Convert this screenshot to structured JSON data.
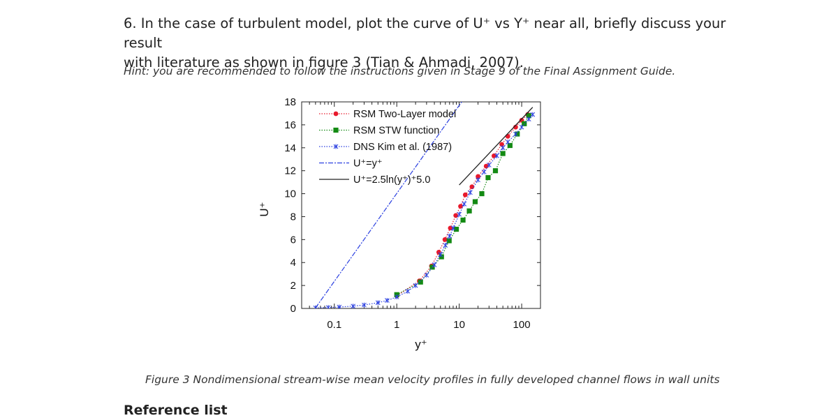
{
  "question": {
    "line1": "6. In the case of turbulent model, plot the curve of U⁺ vs Y⁺ near all, briefly discuss your result",
    "line2": "with literature as shown in figure 3 (Tian & Ahmadi, 2007)."
  },
  "hint": "Hint: you are recommended to follow the instructions given in Stage 9 of the Final Assignment Guide.",
  "caption": "Figure 3 Nondimensional stream-wise mean velocity profiles in fully developed channel flows in wall units",
  "reference_heading": "Reference list",
  "chart_data": {
    "type": "line",
    "title": "",
    "xlabel": "y⁺",
    "ylabel": "U⁺",
    "xscale": "log",
    "xlim": [
      0.03,
      200
    ],
    "ylim": [
      0,
      18
    ],
    "xticks": [
      0.1,
      1,
      10,
      100
    ],
    "xtick_labels": [
      "0.1",
      "1",
      "10",
      "100"
    ],
    "yticks": [
      0,
      2,
      4,
      6,
      8,
      10,
      12,
      14,
      16,
      18
    ],
    "ytick_labels": [
      "0",
      "2",
      "4",
      "6",
      "8",
      "10",
      "12",
      "14",
      "16",
      "18"
    ],
    "legend_position": "top-left",
    "series": [
      {
        "name": "RSM Two-Layer model",
        "color": "#e8192c",
        "marker": "circle",
        "x": [
          1.0,
          2.3,
          3.6,
          4.7,
          5.9,
          7.2,
          8.8,
          10.5,
          12.5,
          16,
          20,
          27,
          36,
          48,
          60,
          80,
          100,
          125
        ],
        "y": [
          1.1,
          2.4,
          3.7,
          4.9,
          6.0,
          7.0,
          8.1,
          8.9,
          9.9,
          10.6,
          11.5,
          12.4,
          13.3,
          14.3,
          15.0,
          15.8,
          16.4,
          16.9
        ]
      },
      {
        "name": "RSM STW function",
        "color": "#138a13",
        "marker": "square",
        "x": [
          1.0,
          2.4,
          3.7,
          5.2,
          6.9,
          9.0,
          11.5,
          14.5,
          18,
          23,
          29,
          38,
          50,
          65,
          85,
          110,
          130
        ],
        "y": [
          1.2,
          2.3,
          3.6,
          4.5,
          5.9,
          6.9,
          7.7,
          8.5,
          9.3,
          10.0,
          11.4,
          12.0,
          13.5,
          14.2,
          15.2,
          16.1,
          16.8
        ]
      },
      {
        "name": "DNS Kim et al. (1987)",
        "color": "#2a3fe0",
        "marker": "asterisk",
        "x": [
          0.05,
          0.08,
          0.12,
          0.2,
          0.3,
          0.5,
          0.7,
          1.0,
          1.5,
          2,
          3,
          4,
          5,
          6,
          7,
          8,
          10,
          12,
          15,
          20,
          25,
          30,
          40,
          50,
          60,
          80,
          100,
          130,
          150
        ],
        "y": [
          0.05,
          0.08,
          0.12,
          0.2,
          0.3,
          0.5,
          0.7,
          1.0,
          1.5,
          2.0,
          2.9,
          3.8,
          4.7,
          5.5,
          6.3,
          7.0,
          8.2,
          9.1,
          10.1,
          11.2,
          11.9,
          12.5,
          13.3,
          14.0,
          14.5,
          15.2,
          15.8,
          16.5,
          16.9
        ]
      },
      {
        "name": "U⁺=y⁺",
        "color": "#2a3fe0",
        "style": "dash-dot",
        "x": [
          0.05,
          20
        ],
        "y": [
          0.05,
          20
        ]
      },
      {
        "name": "U⁺=2.5ln(y⁺)⁺5.0",
        "color": "#222222",
        "style": "solid",
        "x": [
          10,
          150
        ],
        "y": [
          10.76,
          17.53
        ]
      }
    ]
  }
}
